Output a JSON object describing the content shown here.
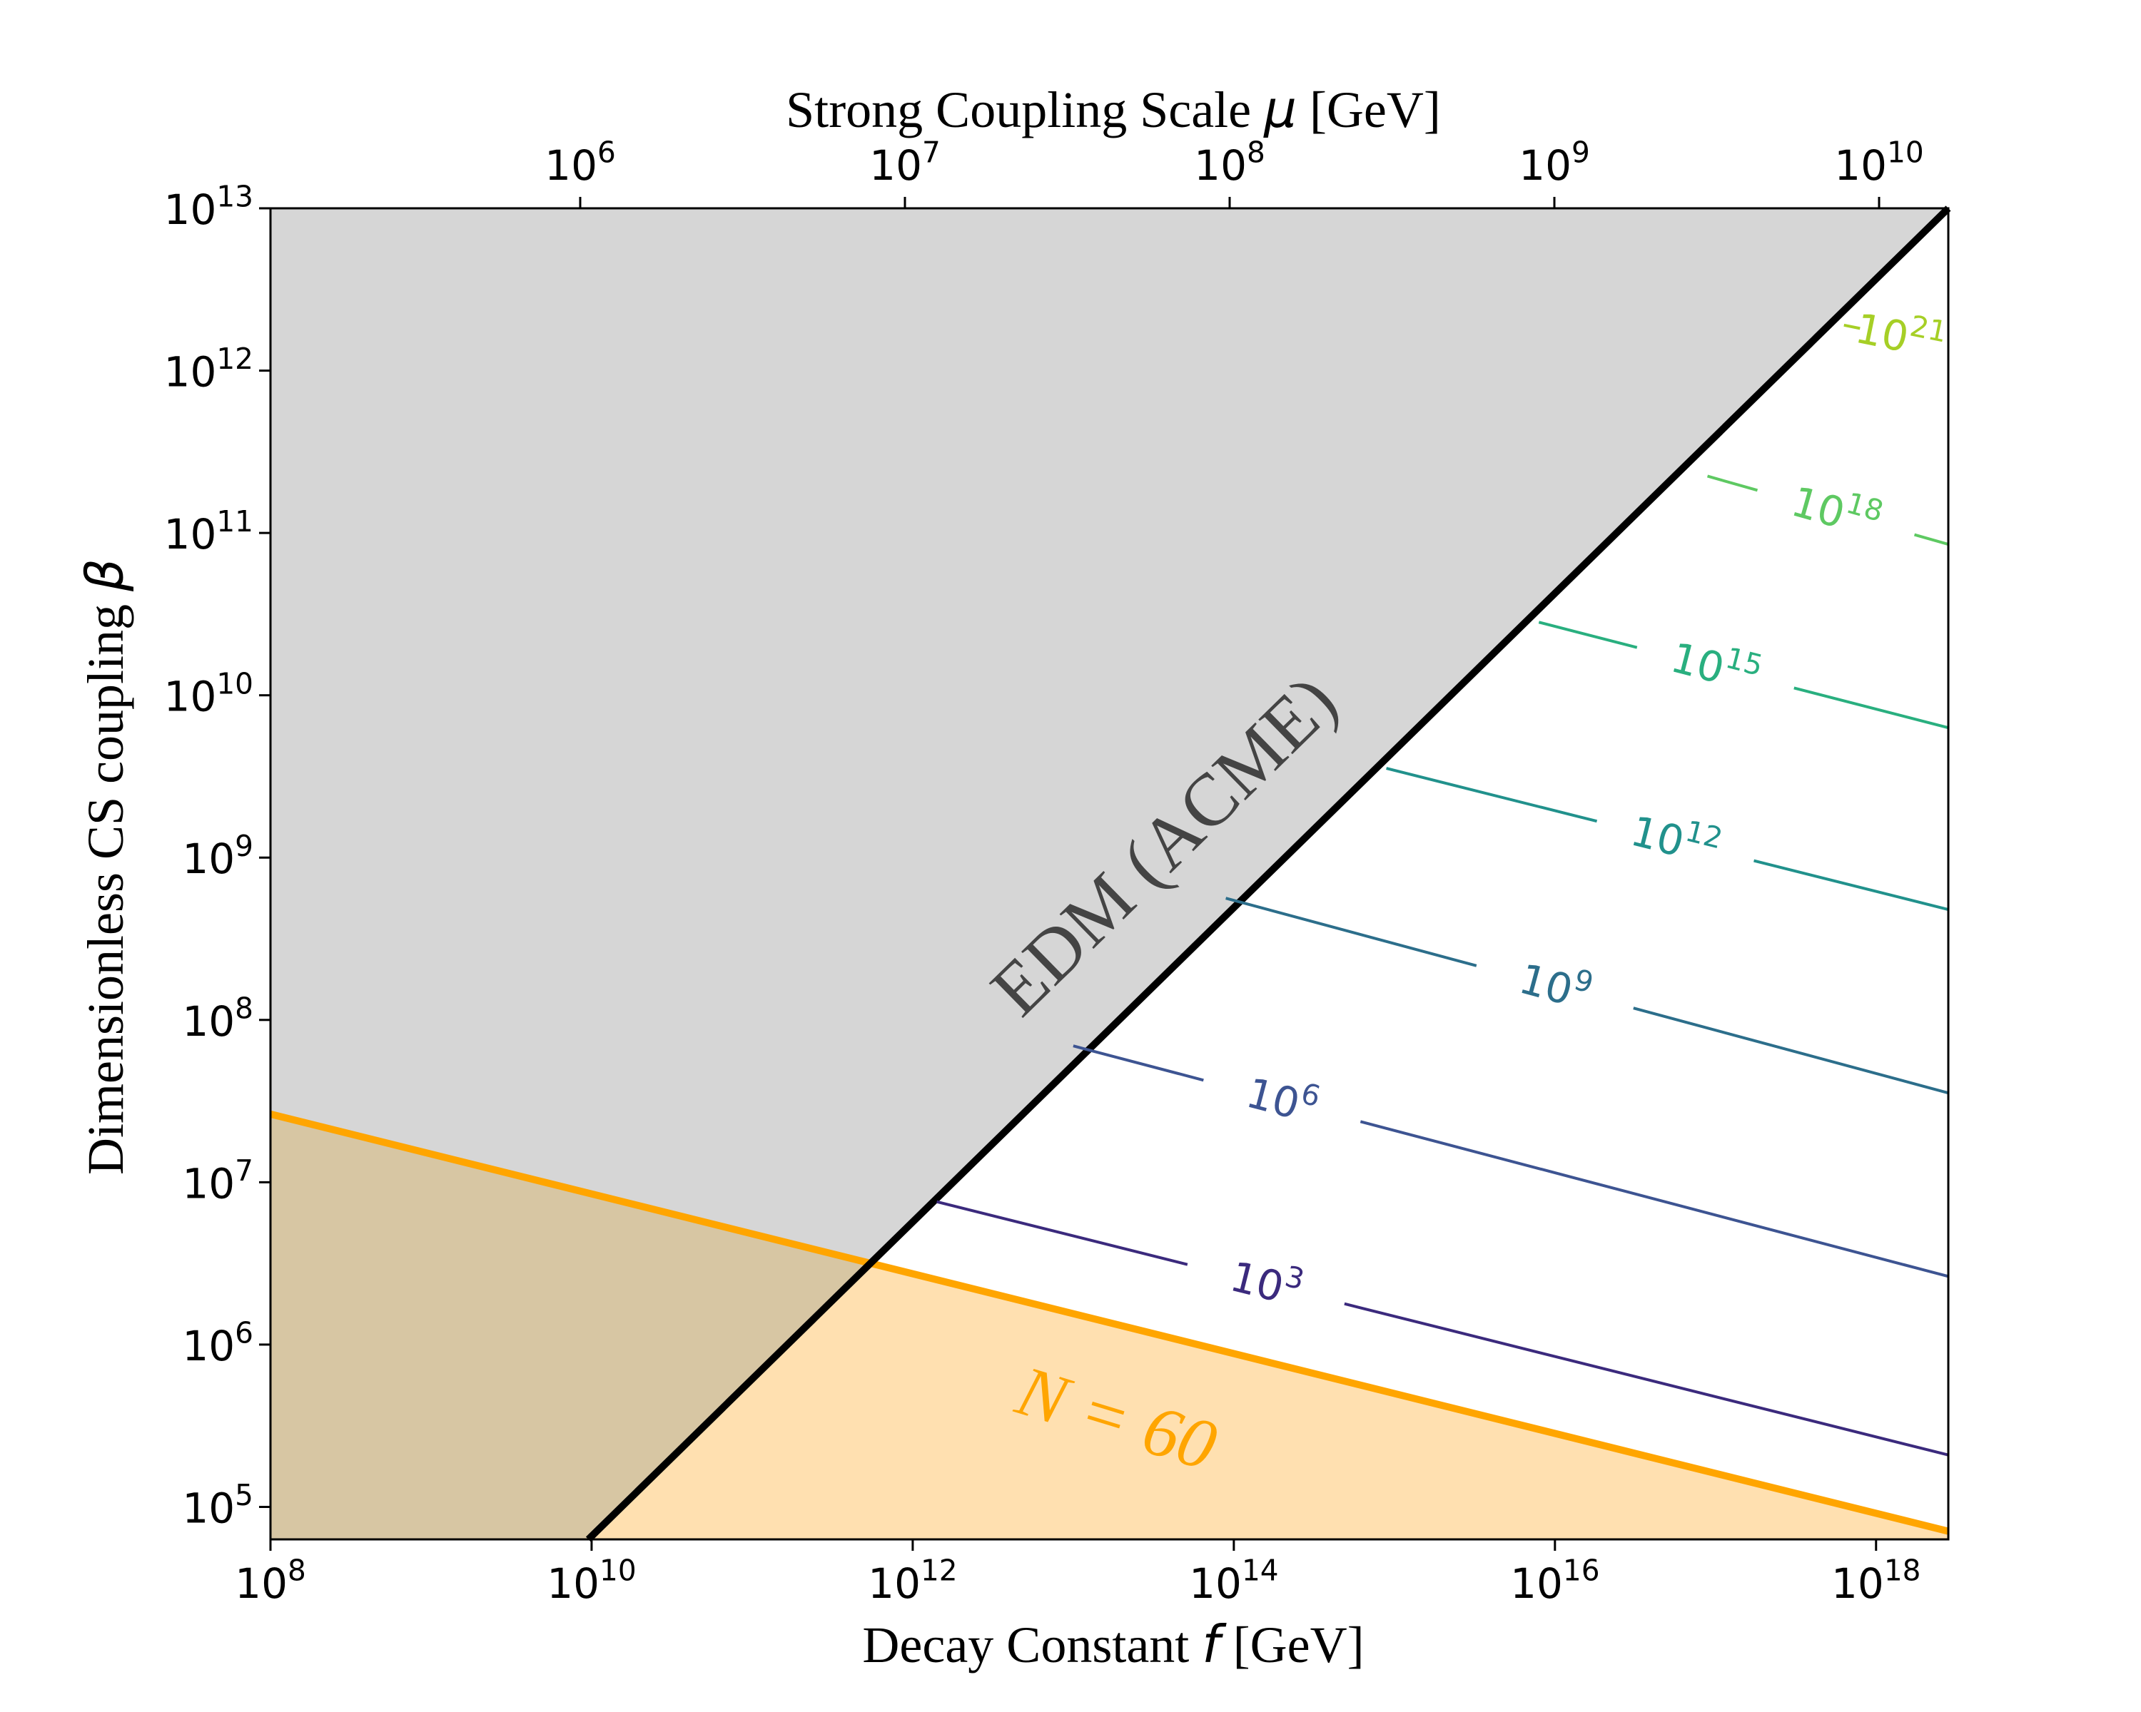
{
  "chart_data": {
    "type": "line",
    "x": {
      "label": "Decay Constant f [GeV]",
      "label_text": "Decay Constant ",
      "label_var": "f",
      "label_unit": " [GeV]",
      "scale": "log",
      "lim_exp": [
        8,
        18.45
      ],
      "ticks": [
        8,
        10,
        12,
        14,
        16,
        18
      ]
    },
    "x_top": {
      "label": "Strong Coupling Scale μ [GeV]",
      "label_text": "Strong Coupling Scale ",
      "label_var": "μ",
      "label_unit": " [GeV]",
      "scale": "log",
      "ticks": [
        6,
        7,
        8,
        9,
        10
      ]
    },
    "y": {
      "label": "Dimensionless CS coupling β",
      "label_text": "Dimensionless CS coupling ",
      "label_var": "β",
      "scale": "log",
      "lim_exp": [
        4.8,
        13
      ],
      "ticks": [
        5,
        6,
        7,
        8,
        9,
        10,
        11,
        12,
        13
      ]
    },
    "tick_base": "10",
    "regions": [
      {
        "name": "EDM (ACME)",
        "label_text": "EDM (ACME)",
        "color": "#d6d6d6",
        "boundary": {
          "x_exp": [
            9.98,
            18.45
          ],
          "y_exp": [
            4.8,
            13.0
          ]
        }
      },
      {
        "name": "N = 60",
        "label_text": "N = 60",
        "color": "#ffe0b0",
        "line_color": "#ffa500",
        "boundary": {
          "x_exp": [
            8.0,
            18.45
          ],
          "y_exp": [
            7.42,
            4.85
          ]
        }
      },
      {
        "name": "overlap",
        "color": "#d7c6a3"
      }
    ],
    "contours": [
      {
        "level_exp": 3,
        "color": "#3b2a7d",
        "x_exp": [
          12.15,
          18.45
        ],
        "y_exp": [
          6.88,
          5.32
        ],
        "label_x_exp": 14.2
      },
      {
        "level_exp": 6,
        "color": "#3d5492",
        "x_exp": [
          13.0,
          18.45
        ],
        "y_exp": [
          7.84,
          6.42
        ],
        "label_x_exp": 14.3
      },
      {
        "level_exp": 9,
        "color": "#2c6e8b",
        "x_exp": [
          13.95,
          18.45
        ],
        "y_exp": [
          8.75,
          7.55
        ],
        "label_x_exp": 16.0
      },
      {
        "level_exp": 12,
        "color": "#21918c",
        "x_exp": [
          14.95,
          18.45
        ],
        "y_exp": [
          9.55,
          8.68
        ],
        "label_x_exp": 16.75
      },
      {
        "level_exp": 15,
        "color": "#29af7f",
        "x_exp": [
          15.9,
          18.45
        ],
        "y_exp": [
          10.45,
          9.8
        ],
        "label_x_exp": 17.0
      },
      {
        "level_exp": 18,
        "color": "#5ec962",
        "x_exp": [
          16.95,
          18.45
        ],
        "y_exp": [
          11.35,
          10.93
        ],
        "label_x_exp": 17.75
      },
      {
        "level_exp": 21,
        "color": "#a6cf26",
        "x_exp": [
          17.8,
          17.9
        ],
        "y_exp": [
          12.28,
          12.26
        ],
        "label_x_exp": 18.15
      }
    ],
    "labels": {
      "edm": "EDM (ACME)",
      "n60": "N = 60"
    }
  }
}
